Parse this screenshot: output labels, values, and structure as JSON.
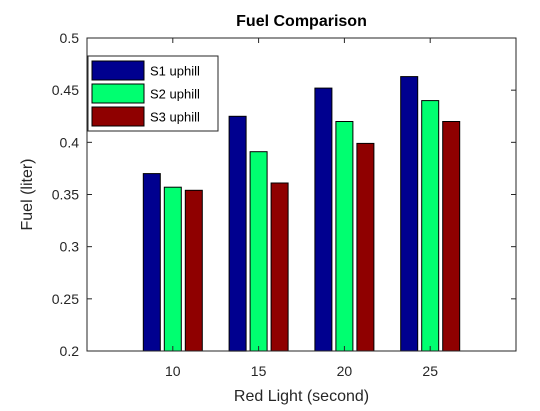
{
  "chart_data": {
    "type": "bar",
    "title": "Fuel Comparison",
    "xlabel": "Red Light (second)",
    "ylabel": "Fuel (liter)",
    "categories": [
      "10",
      "15",
      "20",
      "25"
    ],
    "ylim": [
      0.2,
      0.5
    ],
    "yticks": [
      "0.2",
      "0.25",
      "0.3",
      "0.35",
      "0.4",
      "0.45",
      "0.5"
    ],
    "grid": false,
    "legend_position": "top-left",
    "series": [
      {
        "name": "S1 uphill",
        "color": "#00008F",
        "values": [
          0.37,
          0.425,
          0.452,
          0.463
        ]
      },
      {
        "name": "S2 uphill",
        "color": "#00FF70",
        "values": [
          0.357,
          0.391,
          0.42,
          0.44
        ]
      },
      {
        "name": "S3 uphill",
        "color": "#8F0000",
        "values": [
          0.354,
          0.361,
          0.399,
          0.42
        ]
      }
    ]
  }
}
